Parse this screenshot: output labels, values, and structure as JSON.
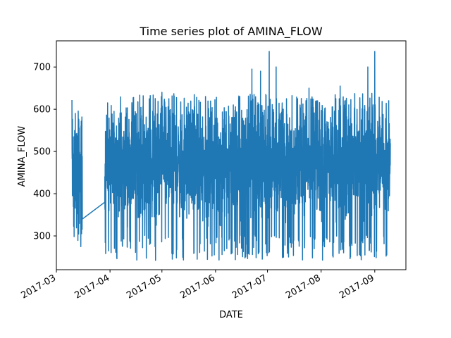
{
  "chart_data": {
    "type": "line",
    "title": "Time series plot of AMINA_FLOW",
    "xlabel": "DATE",
    "ylabel": "AMINA_FLOW",
    "x_range": [
      "2017-03-01",
      "2017-09-19"
    ],
    "ylim": [
      220,
      762
    ],
    "x_ticks": [
      "2017-03",
      "2017-04",
      "2017-05",
      "2017-06",
      "2017-07",
      "2017-08",
      "2017-09"
    ],
    "y_ticks": [
      300,
      400,
      500,
      600,
      700
    ],
    "grid": false,
    "legend": "none",
    "series": [
      {
        "color": "#1f77b4",
        "segments": [
          {
            "start": "2017-03-10",
            "end": "2017-03-16",
            "low": 265,
            "high": 622,
            "center": 455,
            "spread": 110,
            "peaks": [
              [
                "2017-03-10",
                622
              ],
              [
                "2017-03-14",
                570
              ],
              [
                "2017-03-16",
                340
              ]
            ]
          },
          {
            "start": "2017-03-16",
            "end": "2017-03-29",
            "low": 340,
            "high": 380,
            "center": 360,
            "spread": 0,
            "peaks": [
              [
                "2017-03-16",
                340
              ],
              [
                "2017-03-29",
                380
              ]
            ]
          },
          {
            "start": "2017-03-29",
            "end": "2017-09-10",
            "low": 242,
            "high": 738,
            "center": 470,
            "spread": 105,
            "peaks": [
              [
                "2017-04-15",
                585
              ],
              [
                "2017-05-01",
                640
              ],
              [
                "2017-05-05",
                625
              ],
              [
                "2017-06-15",
                630
              ],
              [
                "2017-06-22",
                695
              ],
              [
                "2017-06-27",
                690
              ],
              [
                "2017-07-02",
                737
              ],
              [
                "2017-07-06",
                700
              ],
              [
                "2017-07-12",
                625
              ],
              [
                "2017-07-25",
                650
              ],
              [
                "2017-08-12",
                655
              ],
              [
                "2017-08-28",
                700
              ],
              [
                "2017-09-01",
                737
              ],
              [
                "2017-05-07",
                245
              ],
              [
                "2017-06-03",
                243
              ],
              [
                "2017-06-18",
                248
              ],
              [
                "2017-06-28",
                245
              ],
              [
                "2017-07-27",
                248
              ],
              [
                "2017-08-18",
                250
              ]
            ]
          }
        ]
      }
    ]
  }
}
